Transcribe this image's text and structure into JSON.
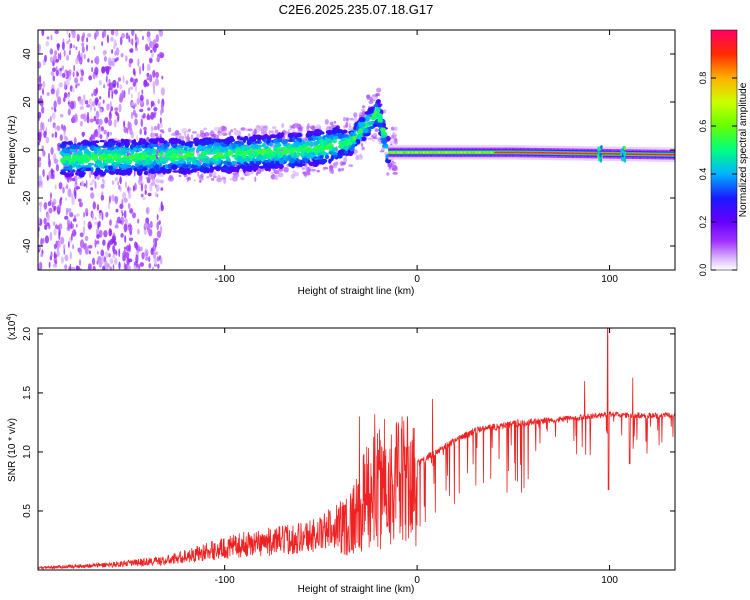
{
  "title": "C2E6.2025.235.07.18.G17",
  "colors": {
    "signal_line": "#ee2222",
    "frame": "#000000",
    "background": "#ffffff"
  },
  "chart_data": [
    {
      "type": "heatmap",
      "title": "C2E6.2025.235.07.18.G17",
      "xlabel": "Height of straight line (km)",
      "ylabel": "Frequency (Hz)",
      "xlim": [
        -197,
        134
      ],
      "ylim": [
        -50,
        50
      ],
      "x_ticks": [
        -100,
        0,
        100
      ],
      "y_ticks": [
        -40,
        -20,
        0,
        20,
        40
      ],
      "colorbar": {
        "label": "Normalized spectral amplitude",
        "range": [
          0,
          1
        ],
        "ticks": [
          0.0,
          0.2,
          0.4,
          0.6,
          0.8
        ],
        "tick_labels": [
          "0.0",
          "0.2",
          "0.4",
          "0.6",
          "0.8"
        ],
        "colormap": [
          "#ffffff",
          "#cc99ff",
          "#8800ff",
          "#2222ff",
          "#00ccff",
          "#00ff66",
          "#ccff00",
          "#ffcc00",
          "#ff3300",
          "#ff0066"
        ]
      },
      "ridge": {
        "description_points": [
          {
            "x": -150,
            "f": -3
          },
          {
            "x": -100,
            "f": -2
          },
          {
            "x": -60,
            "f": 0
          },
          {
            "x": -35,
            "f": 3
          },
          {
            "x": -20,
            "f": 16
          },
          {
            "x": -15,
            "f": -1
          },
          {
            "x": 0,
            "f": -1
          },
          {
            "x": 50,
            "f": -1
          },
          {
            "x": 134,
            "f": -2
          }
        ]
      }
    },
    {
      "type": "line",
      "xlabel": "Height of straight line (km)",
      "ylabel": "SNR (10 * v/v)",
      "y_multiplier_label": "(x10",
      "y_multiplier_exp": "4",
      "y_multiplier_close": ")",
      "xlim": [
        -197,
        134
      ],
      "ylim": [
        0,
        2.05
      ],
      "x_ticks": [
        -100,
        0,
        100
      ],
      "y_ticks": [
        0.5,
        1.0,
        1.5,
        2.0
      ],
      "y_tick_labels": [
        "0.5",
        "1.0",
        "1.5",
        "2.0"
      ],
      "series": [
        {
          "name": "SNR",
          "envelope": [
            {
              "x": -197,
              "y": 0.02
            },
            {
              "x": -160,
              "y": 0.05
            },
            {
              "x": -130,
              "y": 0.09
            },
            {
              "x": -110,
              "y": 0.17
            },
            {
              "x": -90,
              "y": 0.24
            },
            {
              "x": -70,
              "y": 0.28
            },
            {
              "x": -50,
              "y": 0.34
            },
            {
              "x": -35,
              "y": 0.5
            },
            {
              "x": -25,
              "y": 0.8
            },
            {
              "x": -15,
              "y": 0.9
            },
            {
              "x": -5,
              "y": 0.95
            },
            {
              "x": 0,
              "y": 0.9
            },
            {
              "x": 10,
              "y": 1.0
            },
            {
              "x": 20,
              "y": 1.1
            },
            {
              "x": 30,
              "y": 1.18
            },
            {
              "x": 50,
              "y": 1.24
            },
            {
              "x": 70,
              "y": 1.27
            },
            {
              "x": 90,
              "y": 1.3
            },
            {
              "x": 100,
              "y": 1.32
            },
            {
              "x": 110,
              "y": 1.31
            },
            {
              "x": 134,
              "y": 1.31
            }
          ],
          "peaks": [
            {
              "x": -30,
              "y": 1.3
            },
            {
              "x": -22,
              "y": 1.32
            },
            {
              "x": -17,
              "y": 1.28
            },
            {
              "x": 8,
              "y": 1.45
            },
            {
              "x": 87,
              "y": 1.6
            },
            {
              "x": 99,
              "y": 2.05
            },
            {
              "x": 112,
              "y": 1.63
            }
          ]
        }
      ]
    }
  ]
}
